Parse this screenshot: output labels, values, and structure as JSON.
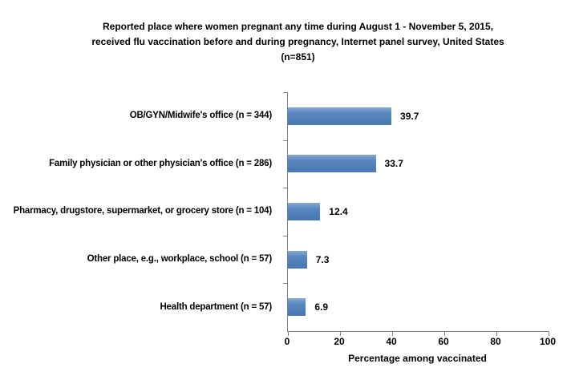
{
  "chart_data": {
    "type": "bar",
    "orientation": "horizontal",
    "title": "Reported place where women pregnant any time during August 1 - November 5, 2015, received flu vaccination  before and during pregnancy, Internet panel survey, United States (n=851)",
    "title_lines": [
      "Reported place where women pregnant any time during August 1 - November 5, 2015,",
      "received flu vaccination  before and during pregnancy, Internet panel survey, United States",
      "(n=851)"
    ],
    "categories": [
      "OB/GYN/Midwife's office (n = 344)",
      "Family physician or other physician's office (n = 286)",
      "Pharmacy, drugstore, supermarket, or grocery store (n = 104)",
      "Other place, e.g., workplace, school (n = 57)",
      "Health department (n = 57)"
    ],
    "values": [
      39.7,
      33.7,
      12.4,
      7.3,
      6.9
    ],
    "xlabel": "Percentage among vaccinated",
    "ylabel": "",
    "xlim": [
      0,
      100
    ],
    "x_ticks": [
      0,
      20,
      40,
      60,
      80,
      100
    ],
    "grid": false,
    "legend": null,
    "bar_color": "#4F81BD",
    "axis_color": "#808080",
    "text_color": "#000000",
    "background_color": "#FFFFFF"
  }
}
